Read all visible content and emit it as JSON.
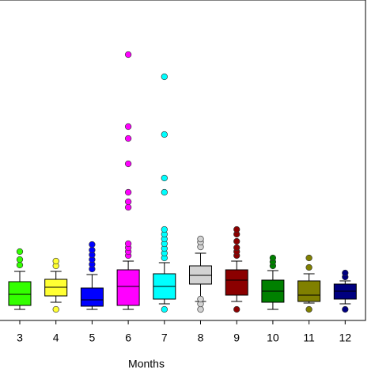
{
  "chart_data": {
    "type": "box",
    "x_label": "Months",
    "categories": [
      "3",
      "4",
      "5",
      "6",
      "7",
      "8",
      "9",
      "10",
      "11",
      "12"
    ],
    "ylim": [
      0,
      405
    ],
    "series": [
      {
        "color": "#33ff00",
        "whisker_low": 14,
        "q1": 19,
        "median": 33,
        "q3": 49,
        "whisker_high": 62,
        "outliers": [
          70,
          77,
          87
        ]
      },
      {
        "color": "#ffff33",
        "whisker_low": 23,
        "q1": 31,
        "median": 42,
        "q3": 52,
        "whisker_high": 62,
        "outliers": [
          14,
          69,
          75
        ]
      },
      {
        "color": "#0000ff",
        "whisker_low": 14,
        "q1": 18,
        "median": 26,
        "q3": 41,
        "whisker_high": 58,
        "outliers": [
          65,
          71,
          77,
          83,
          89,
          96
        ]
      },
      {
        "color": "#ff00ff",
        "whisker_low": 14,
        "q1": 19,
        "median": 43,
        "q3": 64,
        "whisker_high": 75,
        "outliers": [
          82,
          87,
          92,
          97,
          143,
          150,
          162,
          198,
          230,
          245,
          336
        ]
      },
      {
        "color": "#00ffff",
        "whisker_low": 21,
        "q1": 27,
        "median": 43,
        "q3": 59,
        "whisker_high": 73,
        "outliers": [
          14,
          79,
          85,
          91,
          97,
          103,
          109,
          115,
          162,
          180,
          235,
          308
        ]
      },
      {
        "color": "#d3d3d3",
        "whisker_low": 24,
        "q1": 46,
        "median": 57,
        "q3": 69,
        "whisker_high": 85,
        "outliers": [
          14,
          21,
          27,
          93,
          99,
          103
        ]
      },
      {
        "color": "#8b0000",
        "whisker_low": 24,
        "q1": 32,
        "median": 51,
        "q3": 64,
        "whisker_high": 75,
        "outliers": [
          14,
          82,
          87,
          92,
          100,
          109,
          115
        ]
      },
      {
        "color": "#008000",
        "whisker_low": 14,
        "q1": 23,
        "median": 37,
        "q3": 51,
        "whisker_high": 63,
        "outliers": [
          69,
          74,
          79
        ]
      },
      {
        "color": "#808000",
        "whisker_low": 22,
        "q1": 24,
        "median": 32,
        "q3": 50,
        "whisker_high": 59,
        "outliers": [
          14,
          67,
          79
        ]
      },
      {
        "color": "#000080",
        "whisker_low": 21,
        "q1": 27,
        "median": 37,
        "q3": 46,
        "whisker_high": 50,
        "outliers": [
          14,
          55,
          60
        ]
      }
    ]
  }
}
